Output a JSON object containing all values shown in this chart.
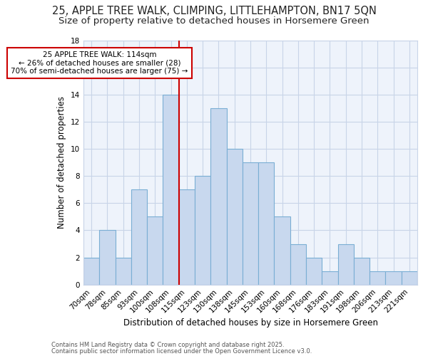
{
  "title1": "25, APPLE TREE WALK, CLIMPING, LITTLEHAMPTON, BN17 5QN",
  "title2": "Size of property relative to detached houses in Horsemere Green",
  "xlabel": "Distribution of detached houses by size in Horsemere Green",
  "ylabel": "Number of detached properties",
  "bar_labels": [
    "70sqm",
    "78sqm",
    "85sqm",
    "93sqm",
    "100sqm",
    "108sqm",
    "115sqm",
    "123sqm",
    "130sqm",
    "138sqm",
    "145sqm",
    "153sqm",
    "160sqm",
    "168sqm",
    "176sqm",
    "183sqm",
    "191sqm",
    "198sqm",
    "206sqm",
    "213sqm",
    "221sqm"
  ],
  "bar_values": [
    2,
    4,
    2,
    7,
    5,
    14,
    7,
    8,
    13,
    10,
    9,
    9,
    5,
    3,
    2,
    1,
    3,
    2,
    1,
    1,
    1
  ],
  "bar_color": "#c8d8ee",
  "bar_edge_color": "#7aaed4",
  "vline_color": "#cc0000",
  "vline_index": 6,
  "annotation_title": "25 APPLE TREE WALK: 114sqm",
  "annotation_line1": "← 26% of detached houses are smaller (28)",
  "annotation_line2": "70% of semi-detached houses are larger (75) →",
  "annotation_box_color": "#ffffff",
  "annotation_box_edge": "#cc0000",
  "ylim": [
    0,
    18
  ],
  "yticks": [
    0,
    2,
    4,
    6,
    8,
    10,
    12,
    14,
    16,
    18
  ],
  "footnote_line1": "Contains HM Land Registry data © Crown copyright and database right 2025.",
  "footnote_line2": "Contains public sector information licensed under the Open Government Licence v3.0.",
  "bg_color": "#ffffff",
  "plot_bg_color": "#eef3fb",
  "grid_color": "#c8d4e8",
  "title_fontsize": 10.5,
  "subtitle_fontsize": 9.5
}
